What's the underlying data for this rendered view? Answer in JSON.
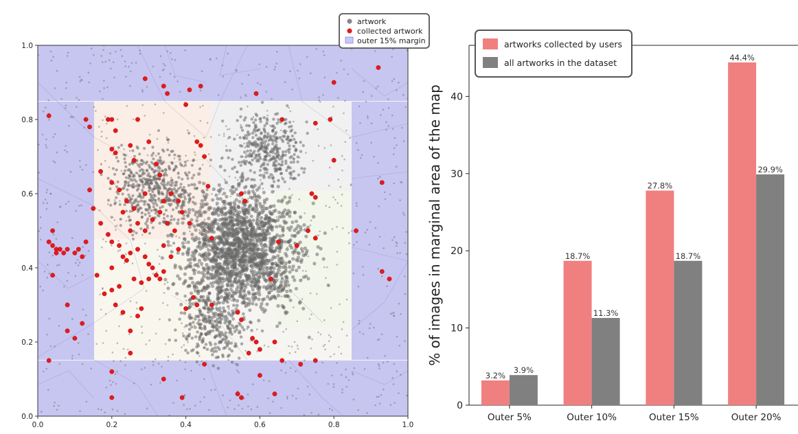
{
  "chart_data": [
    {
      "type": "scatter",
      "title": "",
      "xlabel": "",
      "ylabel": "",
      "xlim": [
        0,
        1
      ],
      "ylim": [
        0,
        1
      ],
      "xticks": [
        "0.0",
        "0.2",
        "0.4",
        "0.6",
        "0.8",
        "1.0"
      ],
      "yticks": [
        "0.0",
        "0.2",
        "0.4",
        "0.6",
        "0.8",
        "1.0"
      ],
      "margin_fraction": 0.15,
      "legend_placement": "top-right",
      "legend": [
        "artwork",
        "collected artwork",
        "outer 15% margin"
      ],
      "series": [
        {
          "name": "collected artwork",
          "color": "#e31a1c",
          "points": [
            [
              0.03,
              0.47
            ],
            [
              0.04,
              0.46
            ],
            [
              0.05,
              0.45
            ],
            [
              0.06,
              0.45
            ],
            [
              0.07,
              0.44
            ],
            [
              0.05,
              0.44
            ],
            [
              0.08,
              0.45
            ],
            [
              0.04,
              0.5
            ],
            [
              0.1,
              0.44
            ],
            [
              0.12,
              0.43
            ],
            [
              0.13,
              0.47
            ],
            [
              0.11,
              0.45
            ],
            [
              0.04,
              0.38
            ],
            [
              0.03,
              0.81
            ],
            [
              0.13,
              0.8
            ],
            [
              0.14,
              0.78
            ],
            [
              0.19,
              0.8
            ],
            [
              0.2,
              0.8
            ],
            [
              0.21,
              0.77
            ],
            [
              0.27,
              0.8
            ],
            [
              0.3,
              0.74
            ],
            [
              0.2,
              0.72
            ],
            [
              0.21,
              0.71
            ],
            [
              0.25,
              0.73
            ],
            [
              0.17,
              0.66
            ],
            [
              0.2,
              0.63
            ],
            [
              0.22,
              0.61
            ],
            [
              0.26,
              0.69
            ],
            [
              0.32,
              0.68
            ],
            [
              0.33,
              0.65
            ],
            [
              0.14,
              0.61
            ],
            [
              0.15,
              0.56
            ],
            [
              0.17,
              0.52
            ],
            [
              0.19,
              0.49
            ],
            [
              0.2,
              0.47
            ],
            [
              0.22,
              0.46
            ],
            [
              0.23,
              0.43
            ],
            [
              0.24,
              0.42
            ],
            [
              0.25,
              0.44
            ],
            [
              0.27,
              0.45
            ],
            [
              0.29,
              0.43
            ],
            [
              0.3,
              0.41
            ],
            [
              0.31,
              0.4
            ],
            [
              0.32,
              0.38
            ],
            [
              0.33,
              0.37
            ],
            [
              0.34,
              0.39
            ],
            [
              0.3,
              0.37
            ],
            [
              0.28,
              0.36
            ],
            [
              0.26,
              0.37
            ],
            [
              0.22,
              0.35
            ],
            [
              0.2,
              0.34
            ],
            [
              0.2,
              0.4
            ],
            [
              0.25,
              0.5
            ],
            [
              0.27,
              0.52
            ],
            [
              0.29,
              0.5
            ],
            [
              0.31,
              0.53
            ],
            [
              0.33,
              0.55
            ],
            [
              0.35,
              0.52
            ],
            [
              0.36,
              0.6
            ],
            [
              0.38,
              0.58
            ],
            [
              0.39,
              0.55
            ],
            [
              0.41,
              0.52
            ],
            [
              0.37,
              0.5
            ],
            [
              0.34,
              0.58
            ],
            [
              0.29,
              0.6
            ],
            [
              0.26,
              0.56
            ],
            [
              0.24,
              0.58
            ],
            [
              0.23,
              0.55
            ],
            [
              0.35,
              0.87
            ],
            [
              0.4,
              0.84
            ],
            [
              0.41,
              0.88
            ],
            [
              0.44,
              0.89
            ],
            [
              0.59,
              0.87
            ],
            [
              0.66,
              0.8
            ],
            [
              0.75,
              0.79
            ],
            [
              0.79,
              0.8
            ],
            [
              0.8,
              0.9
            ],
            [
              0.92,
              0.94
            ],
            [
              0.8,
              0.69
            ],
            [
              0.74,
              0.6
            ],
            [
              0.75,
              0.59
            ],
            [
              0.75,
              0.48
            ],
            [
              0.73,
              0.5
            ],
            [
              0.7,
              0.46
            ],
            [
              0.65,
              0.47
            ],
            [
              0.55,
              0.6
            ],
            [
              0.56,
              0.58
            ],
            [
              0.47,
              0.48
            ],
            [
              0.43,
              0.74
            ],
            [
              0.44,
              0.73
            ],
            [
              0.45,
              0.7
            ],
            [
              0.42,
              0.32
            ],
            [
              0.43,
              0.3
            ],
            [
              0.47,
              0.3
            ],
            [
              0.54,
              0.28
            ],
            [
              0.55,
              0.26
            ],
            [
              0.58,
              0.21
            ],
            [
              0.59,
              0.2
            ],
            [
              0.6,
              0.18
            ],
            [
              0.57,
              0.17
            ],
            [
              0.64,
              0.2
            ],
            [
              0.63,
              0.37
            ],
            [
              0.38,
              0.45
            ],
            [
              0.36,
              0.43
            ],
            [
              0.34,
              0.46
            ],
            [
              0.4,
              0.29
            ],
            [
              0.28,
              0.29
            ],
            [
              0.27,
              0.27
            ],
            [
              0.25,
              0.23
            ],
            [
              0.21,
              0.3
            ],
            [
              0.23,
              0.28
            ],
            [
              0.18,
              0.33
            ],
            [
              0.16,
              0.38
            ],
            [
              0.1,
              0.21
            ],
            [
              0.08,
              0.23
            ],
            [
              0.12,
              0.25
            ],
            [
              0.08,
              0.3
            ],
            [
              0.03,
              0.15
            ],
            [
              0.2,
              0.12
            ],
            [
              0.2,
              0.05
            ],
            [
              0.25,
              0.17
            ],
            [
              0.34,
              0.1
            ],
            [
              0.39,
              0.05
            ],
            [
              0.45,
              0.14
            ],
            [
              0.54,
              0.06
            ],
            [
              0.55,
              0.05
            ],
            [
              0.6,
              0.11
            ],
            [
              0.64,
              0.06
            ],
            [
              0.71,
              0.14
            ],
            [
              0.75,
              0.15
            ],
            [
              0.86,
              0.5
            ],
            [
              0.93,
              0.39
            ],
            [
              0.95,
              0.37
            ],
            [
              0.93,
              0.63
            ],
            [
              0.29,
              0.91
            ],
            [
              0.34,
              0.89
            ],
            [
              0.46,
              0.62
            ],
            [
              0.66,
              0.15
            ]
          ]
        }
      ]
    },
    {
      "type": "bar",
      "title": "",
      "xlabel": "",
      "ylabel": "% of images in marginal area of the map",
      "ylim": [
        0,
        48
      ],
      "yticks": [
        0,
        10,
        20,
        30,
        40
      ],
      "categories": [
        "Outer 5%",
        "Outer 10%",
        "Outer 15%",
        "Outer 20%"
      ],
      "legend_placement": "top-left",
      "series": [
        {
          "name": "artworks collected by users",
          "color": "#f08080",
          "values": [
            3.2,
            18.7,
            27.8,
            44.4
          ],
          "labels": [
            "3.2%",
            "18.7%",
            "27.8%",
            "44.4%"
          ]
        },
        {
          "name": "all artworks in the dataset",
          "color": "#808080",
          "values": [
            3.9,
            11.3,
            18.7,
            29.9
          ],
          "labels": [
            "3.9%",
            "11.3%",
            "18.7%",
            "29.9%"
          ]
        }
      ]
    }
  ]
}
